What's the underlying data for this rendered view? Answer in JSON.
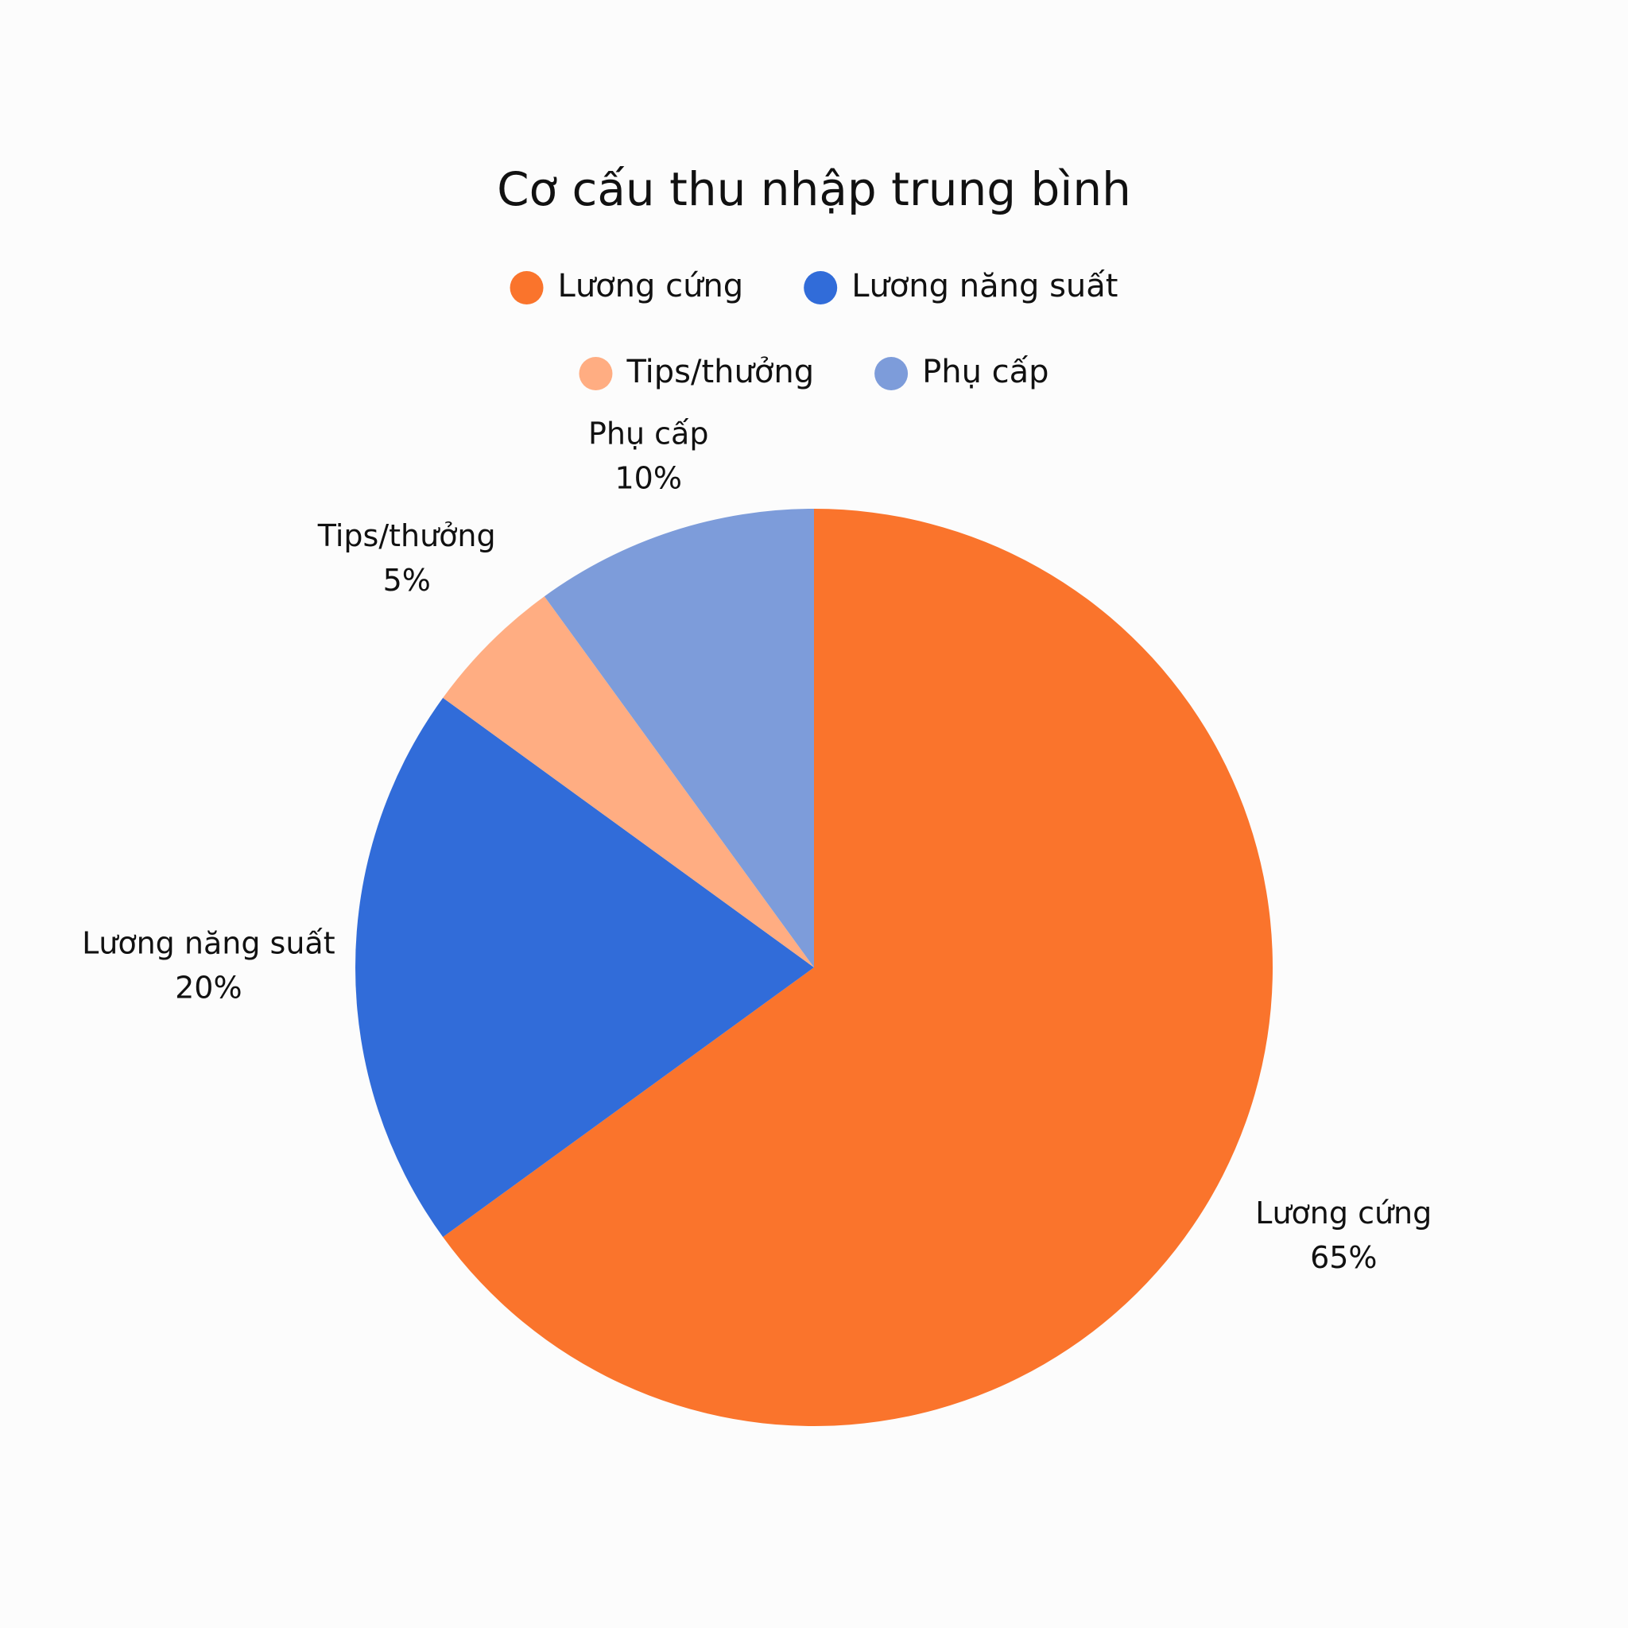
{
  "chart_data": {
    "type": "pie",
    "title": "Cơ cấu thu nhập trung bình",
    "categories": [
      "Lương cứng",
      "Lương năng suất",
      "Tips/thưởng",
      "Phụ cấp"
    ],
    "values": [
      65,
      20,
      5,
      10
    ],
    "value_labels": [
      "65%",
      "20%",
      "5%",
      "10%"
    ],
    "colors": [
      "#fa742c",
      "#316cd9",
      "#ffad82",
      "#7d9cda"
    ],
    "legend": "top"
  }
}
